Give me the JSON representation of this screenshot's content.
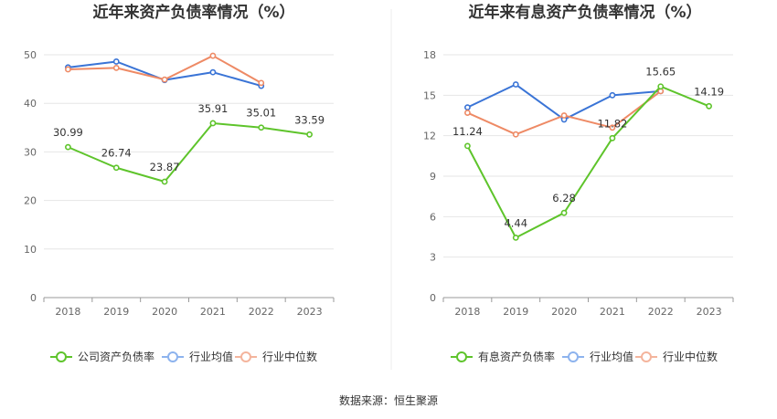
{
  "source_text": "数据来源：恒生聚源",
  "colors": {
    "green": "#5ec42b",
    "blue": "#3a74d6",
    "orange": "#ee8a65",
    "legend_blue": "#8db3ee",
    "legend_orange": "#f4b49c"
  },
  "chart_data": [
    {
      "type": "line",
      "title": "近年来资产负债率情况（%）",
      "categories": [
        "2018",
        "2019",
        "2020",
        "2021",
        "2022",
        "2023"
      ],
      "ylim": [
        0,
        50
      ],
      "yticks": [
        0,
        10,
        20,
        30,
        40,
        50
      ],
      "grid": true,
      "legend_position": "bottom",
      "series": [
        {
          "name": "公司资产负债率",
          "color": "green",
          "values": [
            30.99,
            26.74,
            23.87,
            35.91,
            35.01,
            33.59
          ],
          "labels": [
            "30.99",
            "26.74",
            "23.87",
            "35.91",
            "35.01",
            "33.59"
          ]
        },
        {
          "name": "行业均值",
          "color": "blue",
          "values": [
            47.4,
            48.6,
            44.8,
            46.4,
            43.6,
            null
          ]
        },
        {
          "name": "行业中位数",
          "color": "orange",
          "values": [
            47.0,
            47.3,
            44.9,
            49.8,
            44.2,
            null
          ]
        }
      ]
    },
    {
      "type": "line",
      "title": "近年来有息资产负债率情况（%）",
      "categories": [
        "2018",
        "2019",
        "2020",
        "2021",
        "2022",
        "2023"
      ],
      "ylim": [
        0,
        18
      ],
      "yticks": [
        0,
        3,
        6,
        9,
        12,
        15,
        18
      ],
      "grid": true,
      "legend_position": "bottom",
      "series": [
        {
          "name": "有息资产负债率",
          "color": "green",
          "values": [
            11.24,
            4.44,
            6.28,
            11.82,
            15.65,
            14.19
          ],
          "labels": [
            "11.24",
            "4.44",
            "6.28",
            "11.82",
            "15.65",
            "14.19"
          ]
        },
        {
          "name": "行业均值",
          "color": "blue",
          "values": [
            14.1,
            15.8,
            13.2,
            15.0,
            15.3,
            null
          ]
        },
        {
          "name": "行业中位数",
          "color": "orange",
          "values": [
            13.7,
            12.1,
            13.5,
            12.6,
            15.3,
            null
          ]
        }
      ]
    }
  ]
}
